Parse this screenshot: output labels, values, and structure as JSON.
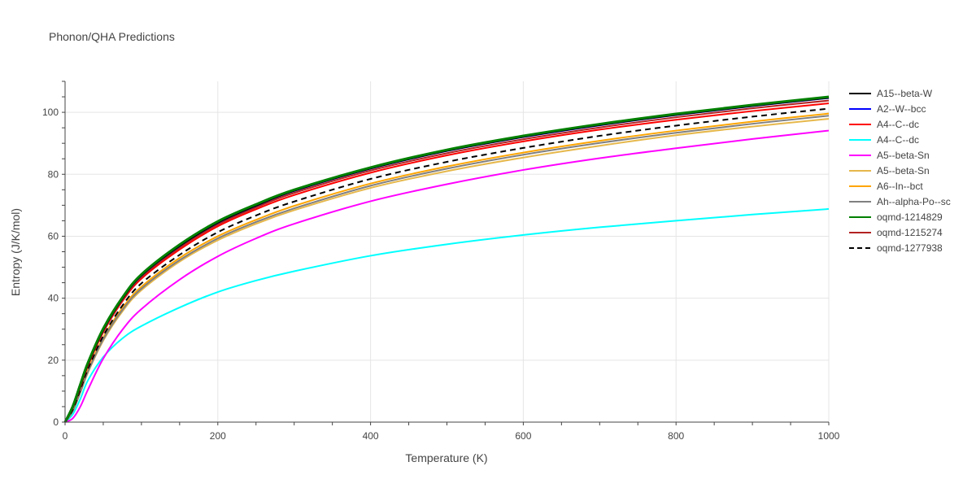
{
  "chart_data": {
    "type": "line",
    "title": "Phonon/QHA Predictions",
    "xlabel": "Temperature (K)",
    "ylabel": "Entropy (J/K/mol)",
    "xlim": [
      0,
      1000
    ],
    "ylim": [
      0,
      110
    ],
    "xticks": [
      "0",
      "200",
      "400",
      "600",
      "800",
      "1000"
    ],
    "yticks": [
      "0",
      "20",
      "40",
      "60",
      "80",
      "100"
    ],
    "grid": true,
    "legend_position": "right",
    "x": [
      0,
      10,
      20,
      30,
      50,
      75,
      100,
      150,
      200,
      250,
      300,
      400,
      500,
      600,
      700,
      800,
      900,
      1000
    ],
    "series": [
      {
        "name": "A15--beta-W",
        "color": "#000000",
        "dash": "solid",
        "values": [
          0,
          5,
          12,
          19,
          30,
          40,
          47.5,
          57,
          64.5,
          70,
          74.8,
          82,
          87.7,
          92.2,
          96,
          99.3,
          102.2,
          104.8
        ]
      },
      {
        "name": "A2--W--bcc",
        "color": "#0000ff",
        "dash": "solid",
        "values": [
          0,
          4.8,
          11.8,
          18.8,
          29.8,
          39.8,
          47.3,
          56.8,
          64.3,
          69.8,
          74.6,
          81.8,
          87.5,
          92,
          95.8,
          99.1,
          102,
          104.6
        ]
      },
      {
        "name": "A4--C--dc",
        "color": "#ff0000",
        "dash": "solid",
        "values": [
          0,
          4.5,
          11.2,
          18.2,
          29,
          39,
          46.3,
          55.7,
          63.2,
          68.7,
          73.3,
          80.5,
          86.1,
          90.6,
          94.4,
          97.6,
          100.4,
          102.9
        ]
      },
      {
        "name": "A4--C--dc",
        "color": "#00ffff",
        "dash": "solid",
        "values": [
          0,
          2.5,
          7.5,
          13.5,
          21,
          27,
          31,
          37,
          42,
          45.7,
          48.7,
          53.7,
          57.4,
          60.4,
          62.9,
          65,
          67,
          68.8
        ]
      },
      {
        "name": "A5--beta-Sn",
        "color": "#ff00ff",
        "dash": "solid",
        "values": [
          0,
          1.2,
          5,
          10.5,
          20.5,
          29.8,
          36.5,
          46,
          53.5,
          59.3,
          64,
          71.3,
          76.8,
          81.4,
          85.2,
          88.4,
          91.4,
          94.1
        ]
      },
      {
        "name": "A5--beta-Sn",
        "color": "#e6b84c",
        "dash": "solid",
        "values": [
          0,
          3.5,
          9.5,
          16,
          26.3,
          35.7,
          42.6,
          51.8,
          58.7,
          64,
          68.4,
          75.6,
          81,
          85.4,
          89.2,
          92.6,
          95.4,
          97.9
        ]
      },
      {
        "name": "A6--In--bct",
        "color": "#ffa500",
        "dash": "solid",
        "values": [
          0,
          3.8,
          10,
          16.8,
          27.3,
          36.8,
          43.7,
          53,
          60,
          65.3,
          69.8,
          77,
          82.5,
          87,
          90.8,
          94.1,
          97,
          99.6
        ]
      },
      {
        "name": "Ah--alpha-Po--sc",
        "color": "#808080",
        "dash": "solid",
        "values": [
          0,
          3.6,
          9.7,
          16.3,
          26.7,
          36.2,
          43.1,
          52.3,
          59.3,
          64.6,
          69,
          76.3,
          81.8,
          86.3,
          90.1,
          93.4,
          96.3,
          98.9
        ]
      },
      {
        "name": "oqmd-1214829",
        "color": "#008000",
        "dash": "solid",
        "values": [
          0,
          5,
          12.2,
          19.2,
          30.2,
          40.2,
          47.7,
          57.3,
          64.8,
          70.3,
          75,
          82.2,
          87.9,
          92.4,
          96.2,
          99.5,
          102.4,
          105
        ]
      },
      {
        "name": "oqmd-1215274",
        "color": "#b22222",
        "dash": "solid",
        "values": [
          0,
          4.7,
          11.5,
          18.5,
          29.4,
          39.4,
          46.8,
          56.3,
          63.8,
          69.3,
          74,
          81.2,
          86.8,
          91.3,
          95.1,
          98.4,
          101.3,
          103.8
        ]
      },
      {
        "name": "oqmd-1277938",
        "color": "#000000",
        "dash": "dash",
        "values": [
          0,
          4,
          10.5,
          17.2,
          27.8,
          37.6,
          44.8,
          54,
          61.3,
          66.7,
          71.2,
          78.5,
          84,
          88.5,
          92.4,
          95.7,
          98.6,
          101.2
        ]
      }
    ]
  }
}
